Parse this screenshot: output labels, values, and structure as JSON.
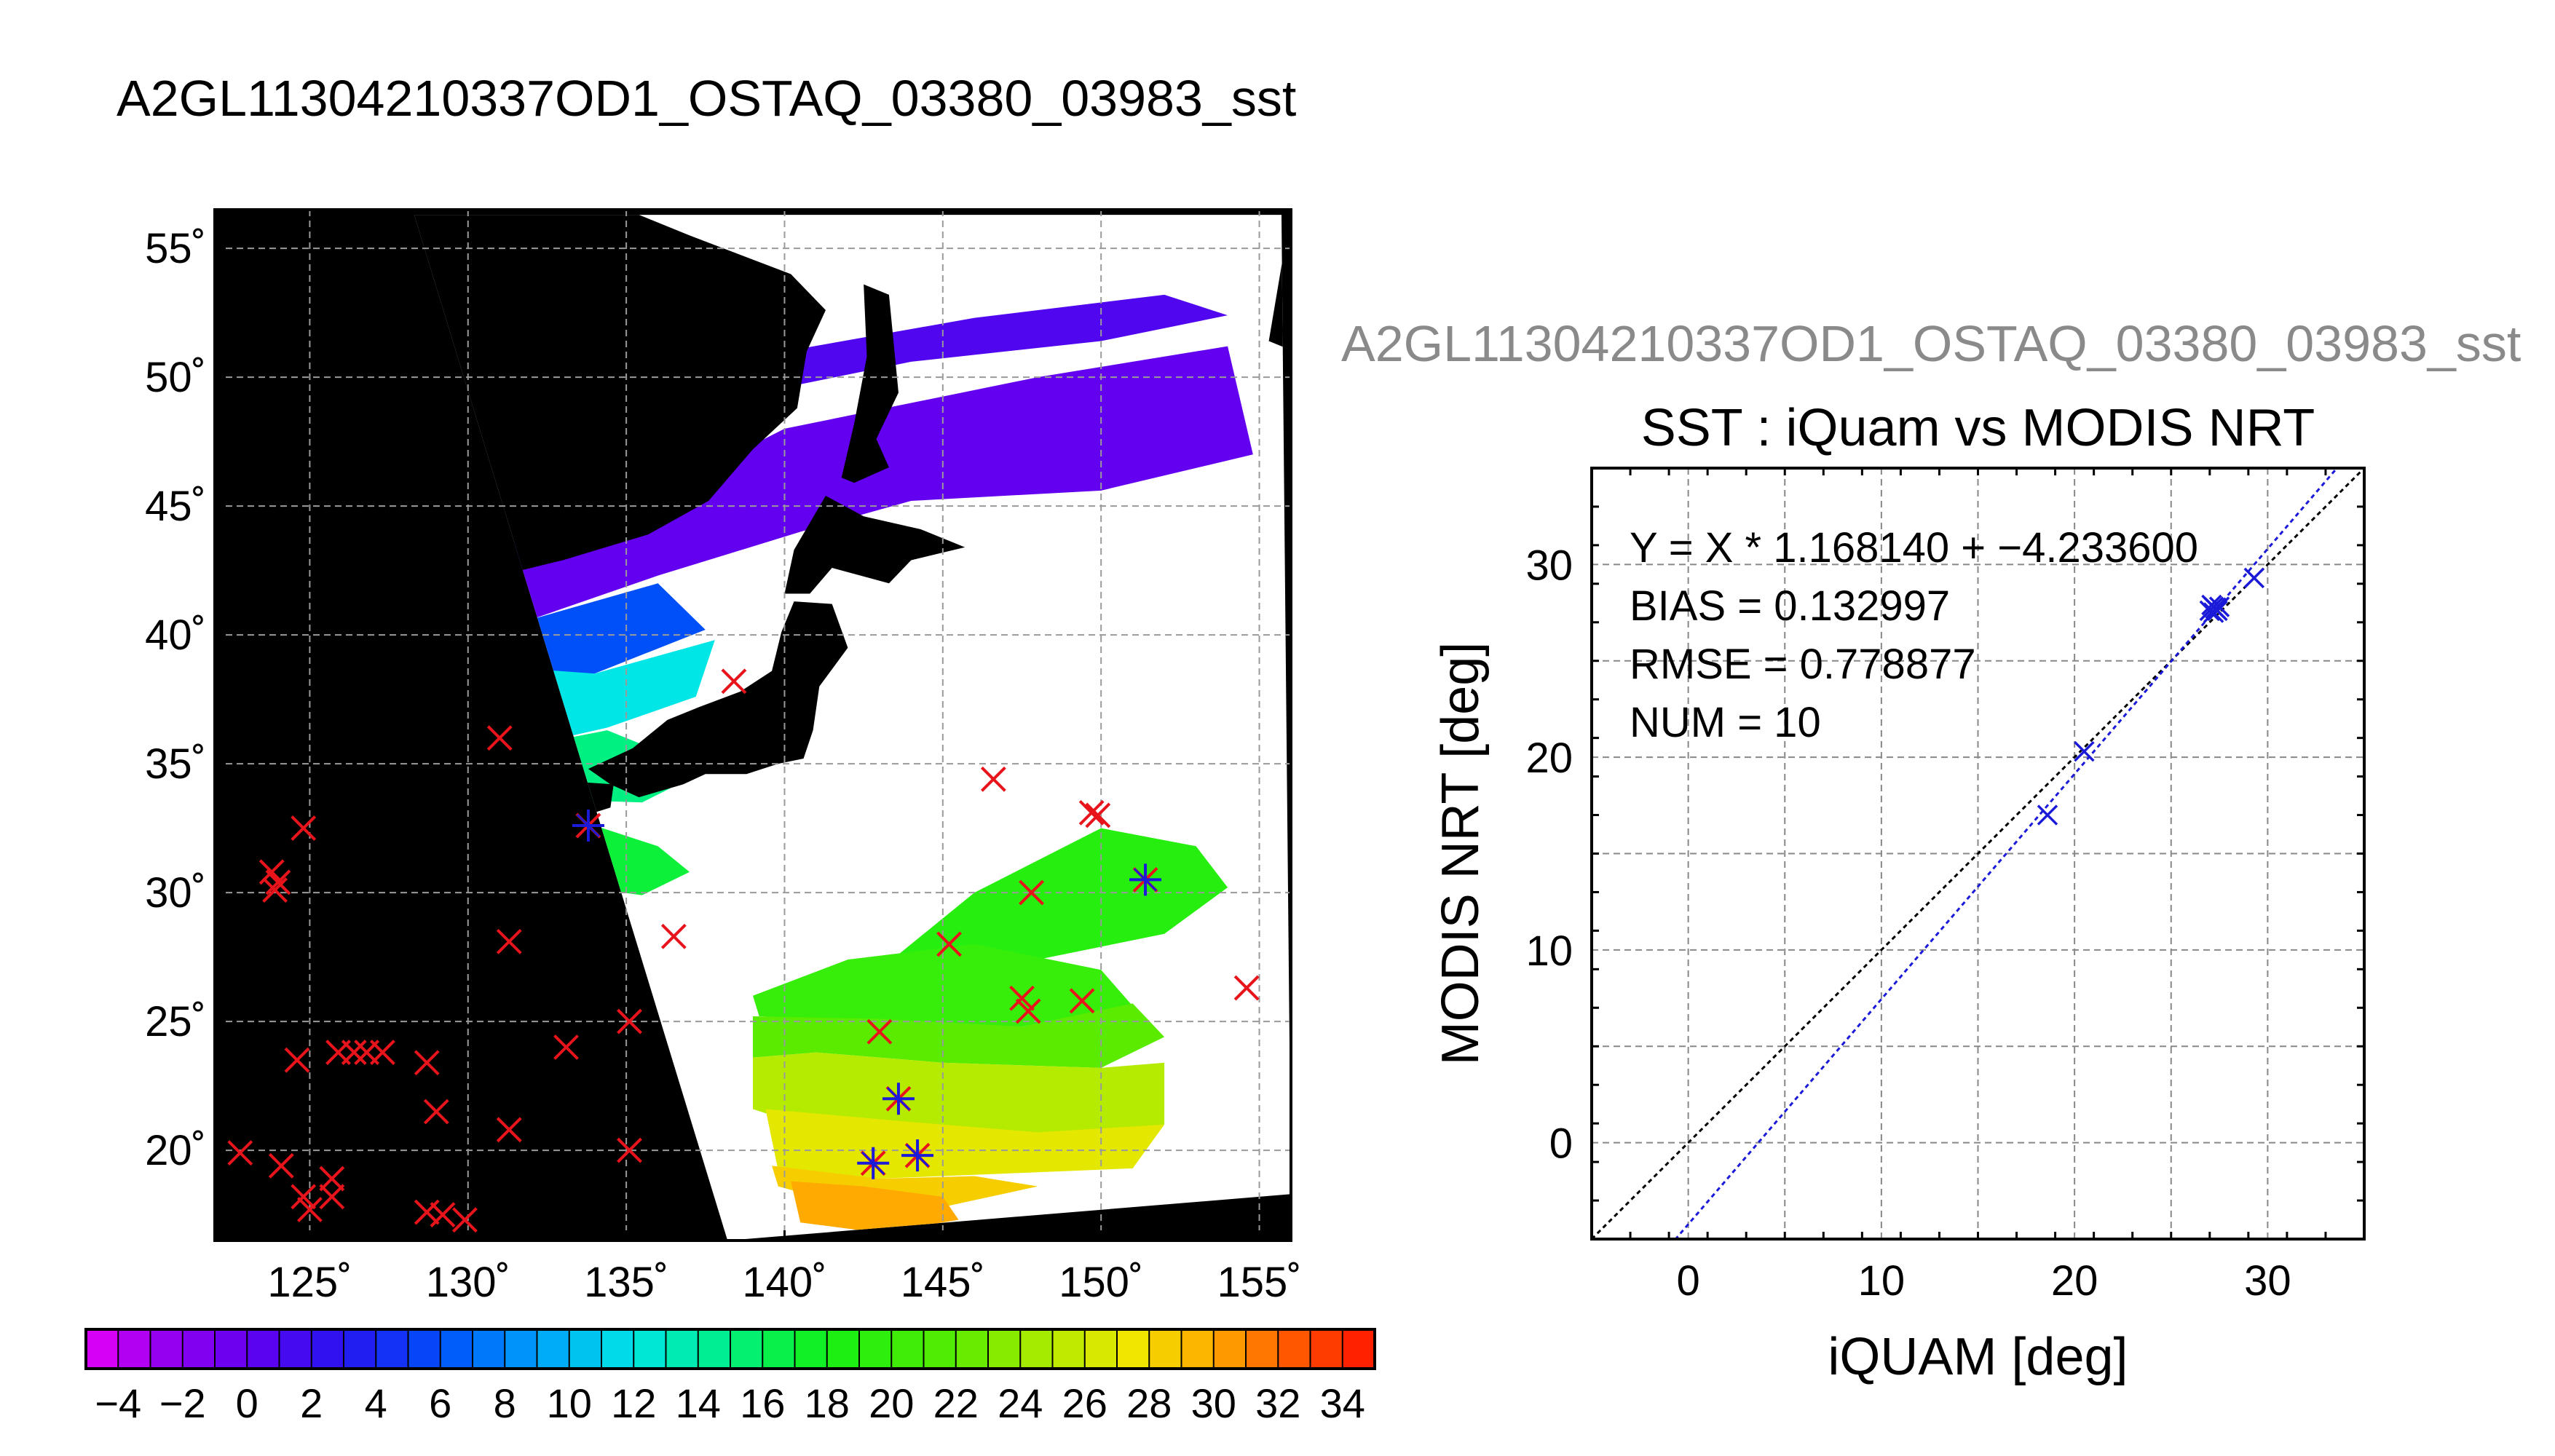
{
  "page_title": "A2GL11304210337OD1_OSTAQ_03380_03983_sst",
  "secondary_title": "A2GL11304210337OD1_OSTAQ_03380_03983_sst",
  "colors": {
    "marker_red": "#e8141b",
    "marker_blue": "#1a1ad8",
    "land": "#000000",
    "cloud": "#ffffff"
  },
  "chart_data": [
    {
      "type": "scatter",
      "name": "sst-map",
      "xlim": [
        122,
        156
      ],
      "ylim": [
        16.5,
        56.5
      ],
      "x_ticks": [
        125,
        130,
        135,
        140,
        145,
        150,
        155
      ],
      "x_tick_labels": [
        "125˚",
        "130˚",
        "135˚",
        "140˚",
        "145˚",
        "150˚",
        "155˚"
      ],
      "y_ticks": [
        20,
        25,
        30,
        35,
        40,
        45,
        50,
        55
      ],
      "y_tick_labels": [
        "20˚",
        "25˚",
        "30˚",
        "35˚",
        "40˚",
        "45˚",
        "50˚",
        "55˚"
      ],
      "grid": true,
      "colorbar": {
        "min": -5,
        "max": 35,
        "ticks": [
          -4,
          -2,
          0,
          2,
          4,
          6,
          8,
          10,
          12,
          14,
          16,
          18,
          20,
          22,
          24,
          26,
          28,
          30,
          32,
          34
        ],
        "tick_labels": [
          "−4",
          "−2",
          "0",
          "2",
          "4",
          "6",
          "8",
          "10",
          "12",
          "14",
          "16",
          "18",
          "20",
          "22",
          "24",
          "26",
          "28",
          "30",
          "32",
          "34"
        ]
      },
      "swath": {
        "corners_lonlat": [
          [
            128.3,
            56.3
          ],
          [
            155.7,
            56.3
          ],
          [
            156,
            18.3
          ],
          [
            138.2,
            16.5
          ]
        ]
      },
      "observations_not_matched": [
        [
          138.4,
          38.2
        ],
        [
          131,
          36
        ],
        [
          146.6,
          34.4
        ],
        [
          149.7,
          33.1
        ],
        [
          149.9,
          33.0
        ],
        [
          124.8,
          32.5
        ],
        [
          123.8,
          30.8
        ],
        [
          124,
          30.4
        ],
        [
          123.9,
          30.1
        ],
        [
          147.8,
          30.0
        ],
        [
          136.5,
          28.3
        ],
        [
          145.2,
          28
        ],
        [
          131.3,
          28.1
        ],
        [
          147.5,
          25.9
        ],
        [
          147.7,
          25.4
        ],
        [
          149.4,
          25.8
        ],
        [
          154.6,
          26.3
        ],
        [
          135.1,
          25
        ],
        [
          143,
          24.6
        ],
        [
          133.1,
          24
        ],
        [
          125.9,
          23.8
        ],
        [
          126.4,
          23.8
        ],
        [
          126.8,
          23.8
        ],
        [
          127.3,
          23.8
        ],
        [
          124.6,
          23.5
        ],
        [
          128.7,
          23.4
        ],
        [
          129,
          21.5
        ],
        [
          131.3,
          20.8
        ],
        [
          135.1,
          20
        ],
        [
          122.8,
          19.9
        ],
        [
          124.1,
          19.4
        ],
        [
          125.7,
          18.9
        ],
        [
          124.8,
          18.2
        ],
        [
          125.7,
          18.2
        ],
        [
          125.0,
          17.7
        ],
        [
          128.7,
          17.6
        ],
        [
          129.2,
          17.5
        ],
        [
          129.9,
          17.3
        ]
      ],
      "observations_matched": [
        [
          133.8,
          32.6
        ],
        [
          151.4,
          30.5
        ],
        [
          143.6,
          22
        ],
        [
          142.8,
          19.5
        ],
        [
          144.2,
          19.8
        ]
      ]
    },
    {
      "type": "scatter",
      "name": "sst-comparison",
      "title": "SST : iQuam vs MODIS NRT",
      "xlabel": "iQUAM [deg]",
      "ylabel": "MODIS NRT [deg]",
      "xlim": [
        -5,
        35
      ],
      "ylim": [
        -5,
        35
      ],
      "x_ticks": [
        0,
        10,
        20,
        30
      ],
      "y_ticks": [
        0,
        10,
        20,
        30
      ],
      "grid": true,
      "points": [
        {
          "x": 18.6,
          "y": 17.0
        },
        {
          "x": 20.5,
          "y": 20.3
        },
        {
          "x": 27.0,
          "y": 27.6
        },
        {
          "x": 27.2,
          "y": 27.8
        },
        {
          "x": 27.3,
          "y": 27.7
        },
        {
          "x": 27.4,
          "y": 27.6
        },
        {
          "x": 27.2,
          "y": 27.5
        },
        {
          "x": 27.5,
          "y": 27.8
        },
        {
          "x": 27.1,
          "y": 27.9
        },
        {
          "x": 29.3,
          "y": 29.3
        }
      ],
      "fit": {
        "slope": 1.16814,
        "intercept": -4.2336
      },
      "stats_lines": [
        "Y = X * 1.168140 + −4.233600",
        "BIAS = 0.132997",
        "RMSE = 0.778877",
        "NUM = 10"
      ]
    }
  ]
}
